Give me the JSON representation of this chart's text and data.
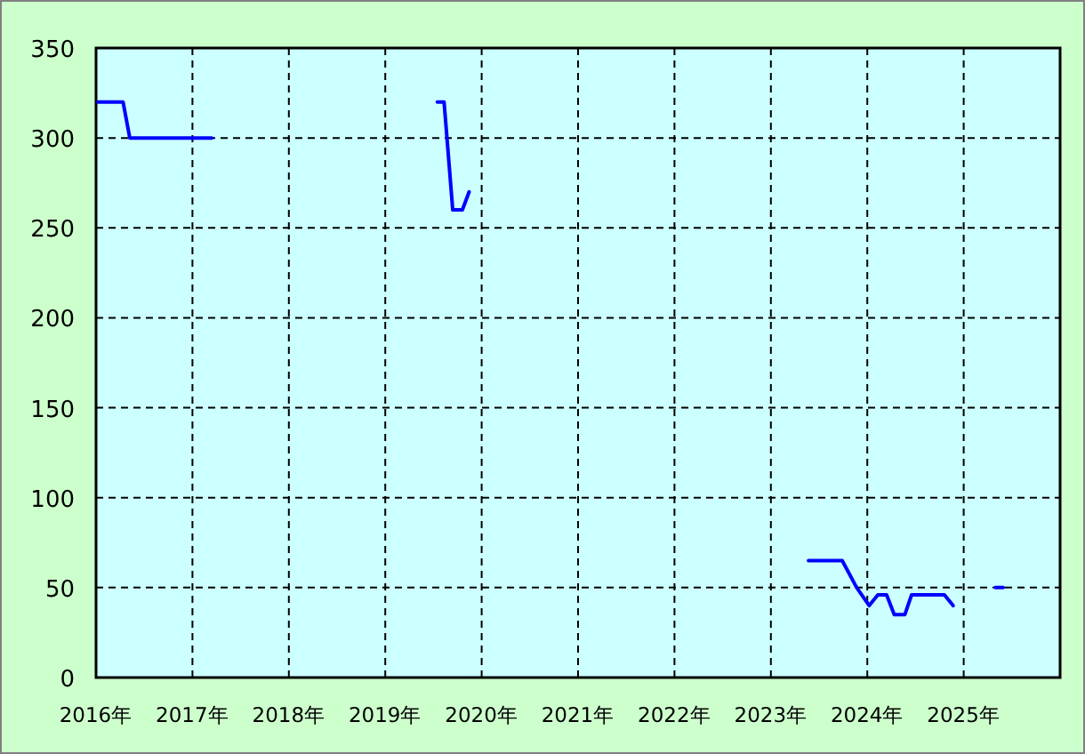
{
  "chart_data": {
    "type": "line",
    "x": [
      2016.02,
      2016.28,
      2016.35,
      2017.2,
      null,
      2019.54,
      2019.61,
      2019.7,
      2019.8,
      2019.87,
      null,
      2023.39,
      2023.74,
      2023.89,
      2024.02,
      2024.11,
      2024.2,
      2024.28,
      2024.39,
      2024.46,
      2024.8,
      2024.89,
      null,
      2025.33,
      2025.41
    ],
    "series": [
      {
        "color": "#0000ff",
        "values": [
          320,
          320,
          300,
          300,
          null,
          320,
          320,
          260,
          260,
          270,
          null,
          65,
          65,
          50,
          40,
          46,
          46,
          35,
          35,
          46,
          46,
          40,
          null,
          50,
          50
        ]
      }
    ],
    "xlim": [
      2016,
      2026
    ],
    "xticks": [
      {
        "value": 2016,
        "label": "2016年"
      },
      {
        "value": 2017,
        "label": "2017年"
      },
      {
        "value": 2018,
        "label": "2018年"
      },
      {
        "value": 2019,
        "label": "2019年"
      },
      {
        "value": 2020,
        "label": "2020年"
      },
      {
        "value": 2021,
        "label": "2021年"
      },
      {
        "value": 2022,
        "label": "2022年"
      },
      {
        "value": 2023,
        "label": "2023年"
      },
      {
        "value": 2024,
        "label": "2024年"
      },
      {
        "value": 2025,
        "label": "2025年"
      }
    ],
    "ylim": [
      0,
      350
    ],
    "yticks": [
      0,
      50,
      100,
      150,
      200,
      250,
      300,
      350
    ],
    "grid": true,
    "line_style": "solid",
    "marker": "none"
  }
}
